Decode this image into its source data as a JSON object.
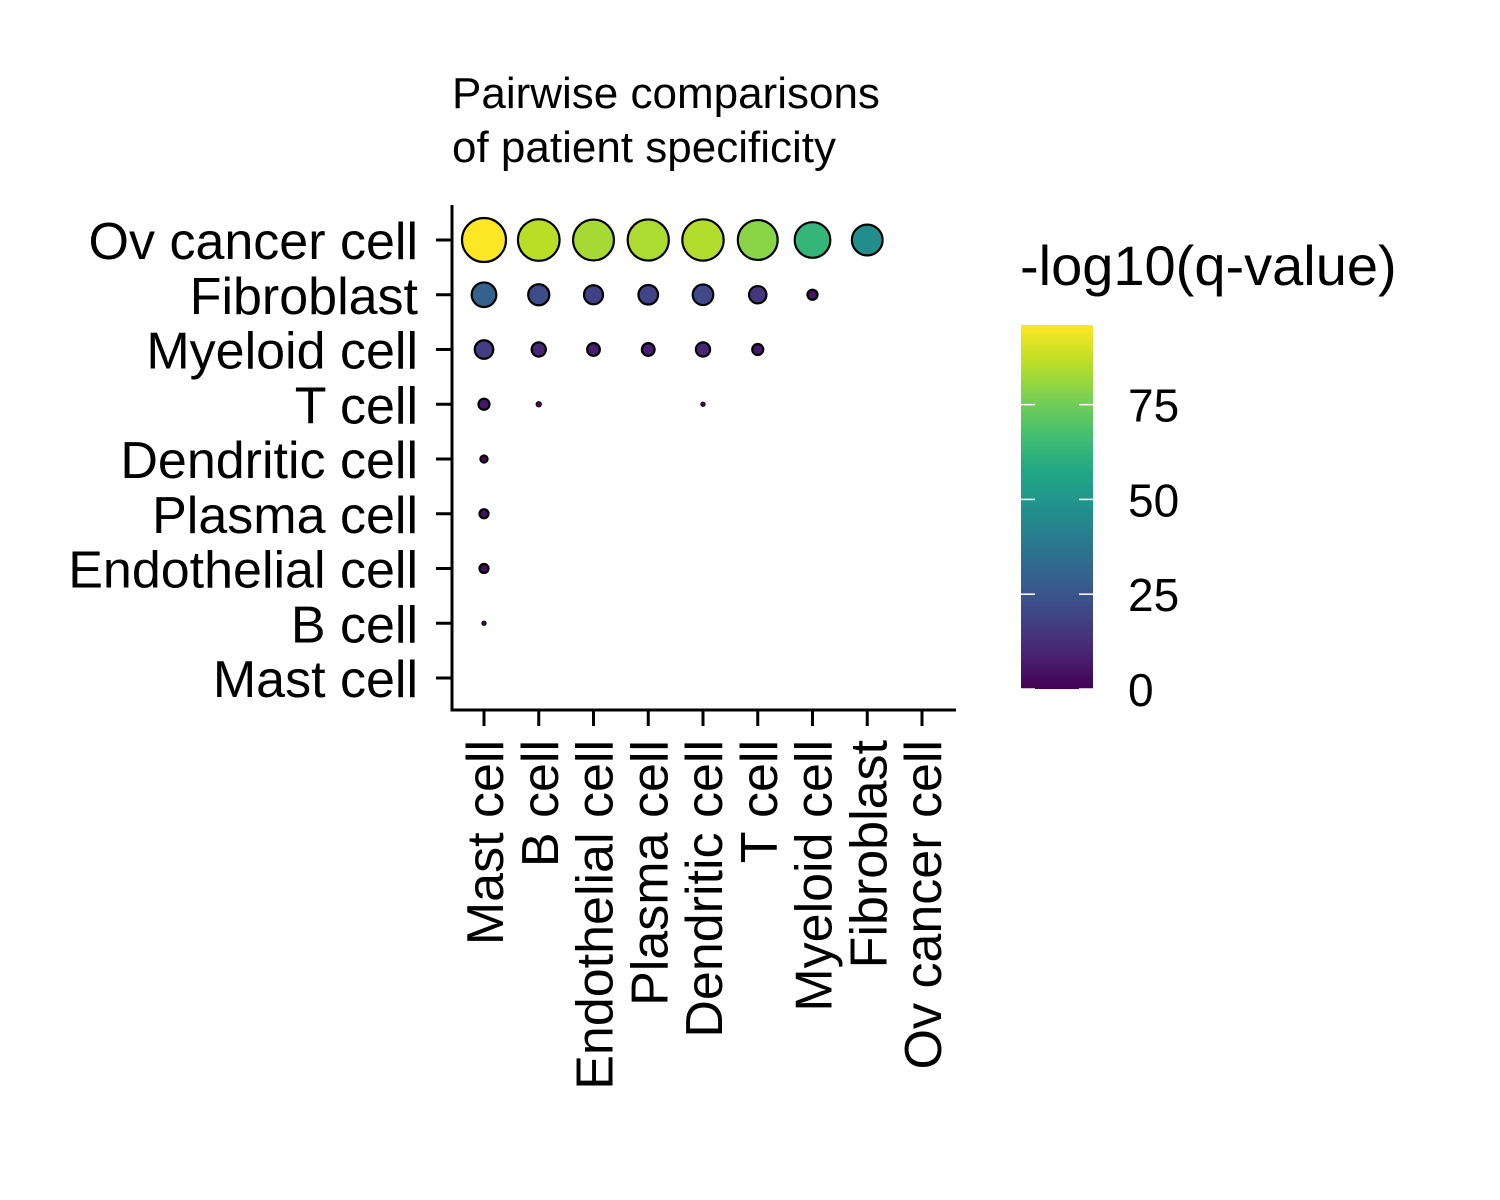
{
  "chart_data": {
    "type": "scatter",
    "subtype": "dot-plot",
    "title_lines": [
      "Pairwise comparisons",
      "of patient specificity"
    ],
    "x_categories": [
      "Mast cell",
      "B cell",
      "Endothelial cell",
      "Plasma cell",
      "Dendritic cell",
      "T cell",
      "Myeloid cell",
      "Fibroblast",
      "Ov cancer cell"
    ],
    "y_categories": [
      "Ov cancer cell",
      "Fibroblast",
      "Myeloid cell",
      "T cell",
      "Dendritic cell",
      "Plasma cell",
      "Endothelial cell",
      "B cell",
      "Mast cell"
    ],
    "points": [
      {
        "y": "Ov cancer cell",
        "x": "Mast cell",
        "value": 96
      },
      {
        "y": "Ov cancer cell",
        "x": "B cell",
        "value": 86
      },
      {
        "y": "Ov cancer cell",
        "x": "Endothelial cell",
        "value": 83
      },
      {
        "y": "Ov cancer cell",
        "x": "Plasma cell",
        "value": 84
      },
      {
        "y": "Ov cancer cell",
        "x": "Dendritic cell",
        "value": 85
      },
      {
        "y": "Ov cancer cell",
        "x": "T cell",
        "value": 79
      },
      {
        "y": "Ov cancer cell",
        "x": "Myeloid cell",
        "value": 63
      },
      {
        "y": "Ov cancer cell",
        "x": "Fibroblast",
        "value": 47
      },
      {
        "y": "Fibroblast",
        "x": "Mast cell",
        "value": 30
      },
      {
        "y": "Fibroblast",
        "x": "B cell",
        "value": 22
      },
      {
        "y": "Fibroblast",
        "x": "Endothelial cell",
        "value": 18
      },
      {
        "y": "Fibroblast",
        "x": "Plasma cell",
        "value": 19
      },
      {
        "y": "Fibroblast",
        "x": "Dendritic cell",
        "value": 21
      },
      {
        "y": "Fibroblast",
        "x": "T cell",
        "value": 15
      },
      {
        "y": "Fibroblast",
        "x": "Myeloid cell",
        "value": 5
      },
      {
        "y": "Myeloid cell",
        "x": "Mast cell",
        "value": 17
      },
      {
        "y": "Myeloid cell",
        "x": "B cell",
        "value": 10
      },
      {
        "y": "Myeloid cell",
        "x": "Endothelial cell",
        "value": 8
      },
      {
        "y": "Myeloid cell",
        "x": "Plasma cell",
        "value": 8
      },
      {
        "y": "Myeloid cell",
        "x": "Dendritic cell",
        "value": 10
      },
      {
        "y": "Myeloid cell",
        "x": "T cell",
        "value": 6
      },
      {
        "y": "T cell",
        "x": "Mast cell",
        "value": 6
      },
      {
        "y": "T cell",
        "x": "B cell",
        "value": 1.5
      },
      {
        "y": "T cell",
        "x": "Dendritic cell",
        "value": 1
      },
      {
        "y": "Dendritic cell",
        "x": "Mast cell",
        "value": 2.5
      },
      {
        "y": "Plasma cell",
        "x": "Mast cell",
        "value": 4
      },
      {
        "y": "Endothelial cell",
        "x": "Mast cell",
        "value": 4
      },
      {
        "y": "B cell",
        "x": "Mast cell",
        "value": 1
      }
    ],
    "size_encodes": "value",
    "color_encodes": "value",
    "colormap": "viridis",
    "legend": {
      "title": "-log10(q-value)",
      "range": [
        0,
        96
      ],
      "ticks": [
        0,
        25,
        50,
        75
      ],
      "tick_labels": [
        "0",
        "25",
        "50",
        "75"
      ],
      "placement": "right"
    },
    "xlabel": "",
    "ylabel": "",
    "grid": false
  }
}
